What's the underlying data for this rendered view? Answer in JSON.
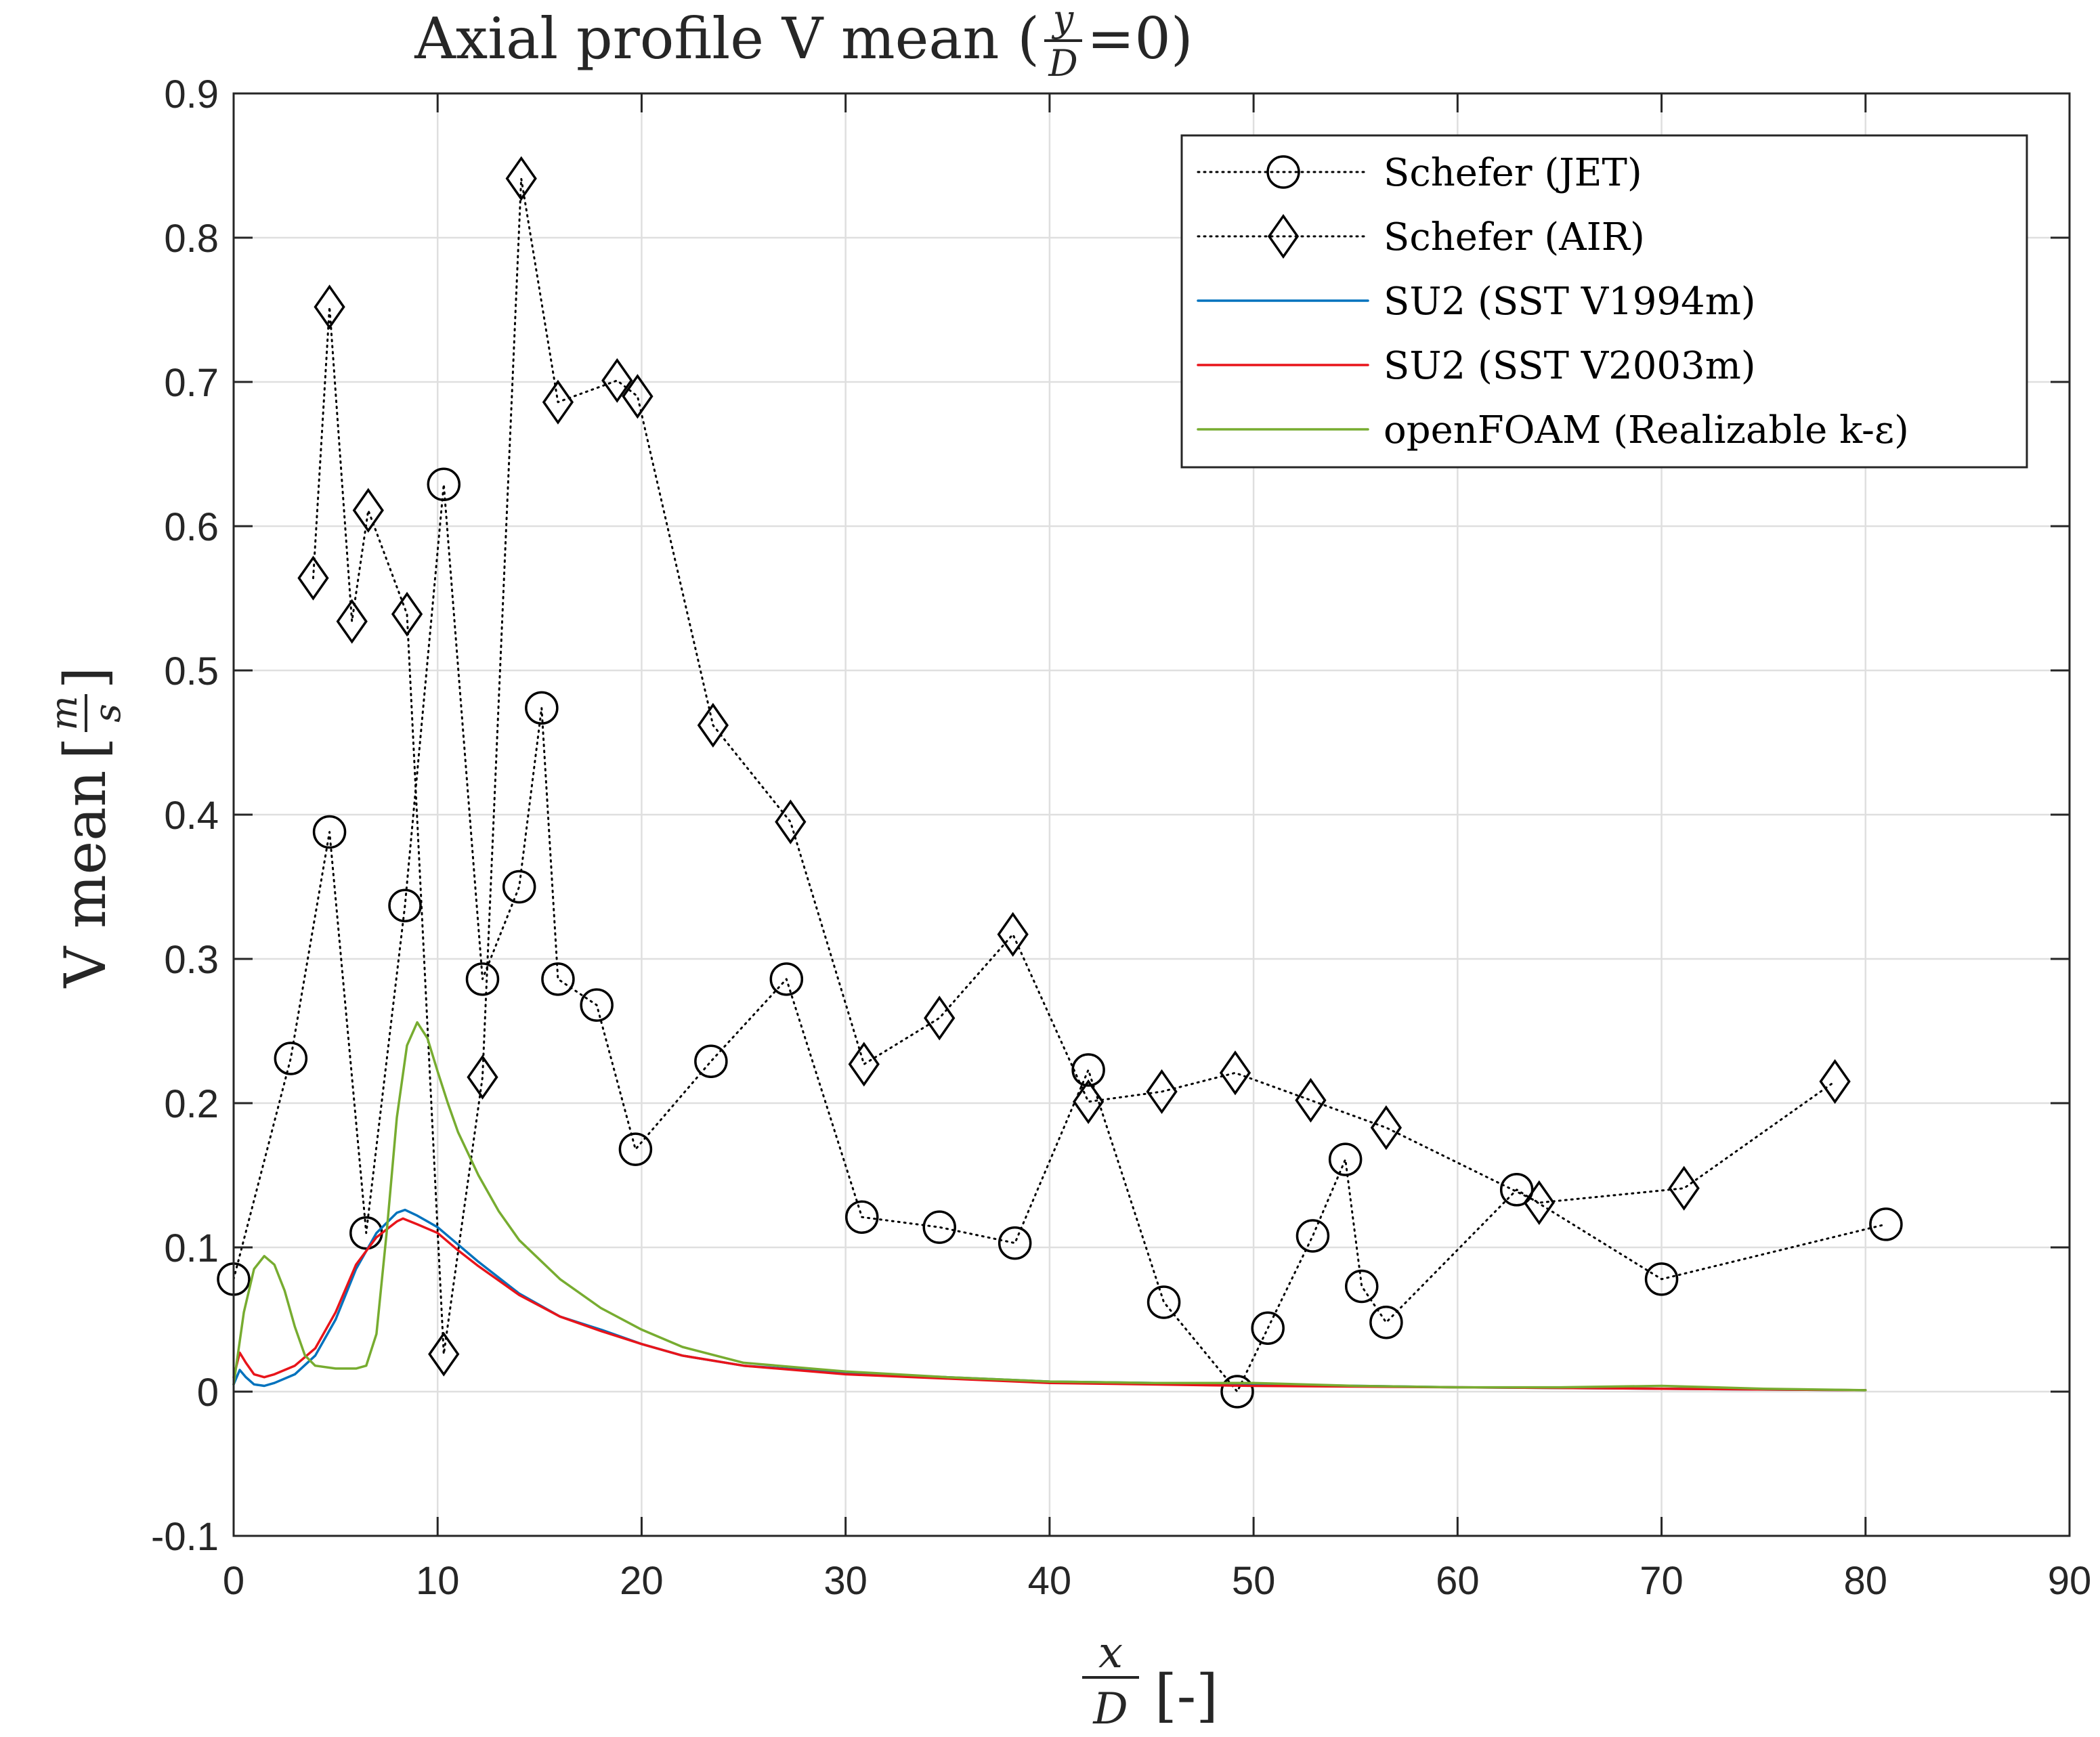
{
  "chart_data": {
    "type": "line",
    "title": "Axial profile V mean (y/D=0)",
    "title_parts": {
      "prefix": "Axial profile V mean (",
      "frac_num": "y",
      "frac_den": "D",
      "suffix": "=0)"
    },
    "xlabel": "x/D [-]",
    "xlabel_parts": {
      "frac_num": "x",
      "frac_den": "D",
      "unit": "[-]"
    },
    "ylabel": "V mean [m/s]",
    "ylabel_parts": {
      "text": "V mean",
      "frac_num": "m",
      "frac_den": "s",
      "open": "[",
      "close": "]"
    },
    "xlim": [
      0,
      90
    ],
    "ylim": [
      -0.1,
      0.9
    ],
    "xticks": [
      0,
      10,
      20,
      30,
      40,
      50,
      60,
      70,
      80,
      90
    ],
    "yticks": [
      -0.1,
      0,
      0.1,
      0.2,
      0.3,
      0.4,
      0.5,
      0.6,
      0.7,
      0.8,
      0.9
    ],
    "xtick_labels": [
      "0",
      "10",
      "20",
      "30",
      "40",
      "50",
      "60",
      "70",
      "80",
      "90"
    ],
    "ytick_labels": [
      "-0.1",
      "0",
      "0.1",
      "0.2",
      "0.3",
      "0.4",
      "0.5",
      "0.6",
      "0.7",
      "0.8",
      "0.9"
    ],
    "grid": true,
    "legend_position": "top-right",
    "series": [
      {
        "name": "Schefer (JET)",
        "style": "dotted",
        "marker": "circle",
        "color": "#000000",
        "x": [
          0,
          2.8,
          4.7,
          6.5,
          8.4,
          10.3,
          12.2,
          14.0,
          15.1,
          15.9,
          17.8,
          19.7,
          23.4,
          27.1,
          30.8,
          34.6,
          38.3,
          41.9,
          45.6,
          49.2,
          50.7,
          52.9,
          54.5,
          55.3,
          56.5,
          62.9,
          70.0,
          81.0
        ],
        "y": [
          0.078,
          0.231,
          0.388,
          0.11,
          0.337,
          0.629,
          0.286,
          0.35,
          0.474,
          0.286,
          0.268,
          0.168,
          0.229,
          0.286,
          0.121,
          0.114,
          0.103,
          0.223,
          0.062,
          0.0,
          0.044,
          0.108,
          0.161,
          0.073,
          0.048,
          0.14,
          0.078,
          0.116
        ]
      },
      {
        "name": "Schefer (AIR)",
        "style": "dotted",
        "marker": "diamond",
        "color": "#000000",
        "x": [
          3.9,
          4.7,
          5.8,
          6.6,
          8.5,
          10.3,
          12.2,
          14.1,
          15.9,
          18.8,
          19.8,
          23.5,
          27.3,
          30.9,
          34.6,
          38.2,
          41.9,
          45.5,
          49.1,
          52.8,
          56.5,
          64.0,
          71.1,
          78.5
        ],
        "y": [
          0.564,
          0.752,
          0.534,
          0.611,
          0.539,
          0.026,
          0.218,
          0.841,
          0.686,
          0.701,
          0.69,
          0.462,
          0.395,
          0.227,
          0.259,
          0.317,
          0.201,
          0.208,
          0.221,
          0.202,
          0.183,
          0.131,
          0.141,
          0.215
        ]
      },
      {
        "name": "SU2 (SST V1994m)",
        "style": "solid",
        "marker": "none",
        "color": "#0072BD",
        "x": [
          0,
          0.3,
          0.6,
          1.0,
          1.5,
          2.0,
          3.0,
          4.0,
          5.0,
          6.0,
          7.0,
          8.0,
          8.4,
          9.0,
          10.0,
          11.0,
          12.0,
          13.0,
          14.0,
          16.0,
          18.0,
          20.0,
          22.0,
          25.0,
          30.0,
          35.0,
          40.0,
          50.0,
          60.0,
          70.0,
          80.0
        ],
        "y": [
          0.005,
          0.015,
          0.01,
          0.005,
          0.004,
          0.006,
          0.012,
          0.025,
          0.05,
          0.085,
          0.11,
          0.124,
          0.126,
          0.122,
          0.114,
          0.102,
          0.09,
          0.079,
          0.068,
          0.052,
          0.043,
          0.033,
          0.025,
          0.018,
          0.013,
          0.01,
          0.007,
          0.005,
          0.003,
          0.002,
          0.001
        ]
      },
      {
        "name": "SU2 (SST V2003m)",
        "style": "solid",
        "marker": "none",
        "color": "#E8141A",
        "x": [
          0,
          0.3,
          0.6,
          1.0,
          1.5,
          2.0,
          3.0,
          4.0,
          5.0,
          6.0,
          7.0,
          8.0,
          8.3,
          9.0,
          10.0,
          11.0,
          12.0,
          13.0,
          14.0,
          16.0,
          18.0,
          20.0,
          22.0,
          25.0,
          30.0,
          35.0,
          40.0,
          50.0,
          60.0,
          70.0,
          80.0
        ],
        "y": [
          0.01,
          0.027,
          0.02,
          0.012,
          0.01,
          0.012,
          0.018,
          0.03,
          0.055,
          0.088,
          0.107,
          0.118,
          0.12,
          0.116,
          0.11,
          0.098,
          0.087,
          0.077,
          0.067,
          0.052,
          0.042,
          0.033,
          0.025,
          0.018,
          0.012,
          0.009,
          0.006,
          0.004,
          0.003,
          0.002,
          0.001
        ]
      },
      {
        "name": "openFOAM (Realizable k-ε)",
        "style": "solid",
        "marker": "none",
        "color": "#77AC30",
        "x": [
          0,
          0.5,
          1.0,
          1.5,
          2.0,
          2.5,
          3.0,
          3.5,
          4.0,
          5.0,
          6.0,
          6.5,
          7.0,
          7.5,
          8.0,
          8.5,
          9.0,
          9.5,
          10.0,
          10.5,
          11.0,
          12.0,
          13.0,
          14.0,
          16.0,
          18.0,
          20.0,
          22.0,
          25.0,
          30.0,
          35.0,
          40.0,
          45.0,
          50.0,
          55.0,
          60.0,
          65.0,
          70.0,
          75.0,
          80.0
        ],
        "y": [
          0.005,
          0.055,
          0.085,
          0.094,
          0.088,
          0.07,
          0.045,
          0.025,
          0.018,
          0.016,
          0.016,
          0.018,
          0.04,
          0.11,
          0.19,
          0.24,
          0.256,
          0.245,
          0.222,
          0.2,
          0.18,
          0.15,
          0.125,
          0.105,
          0.078,
          0.058,
          0.043,
          0.031,
          0.02,
          0.014,
          0.01,
          0.007,
          0.006,
          0.006,
          0.004,
          0.003,
          0.003,
          0.004,
          0.002,
          0.001
        ]
      }
    ]
  }
}
